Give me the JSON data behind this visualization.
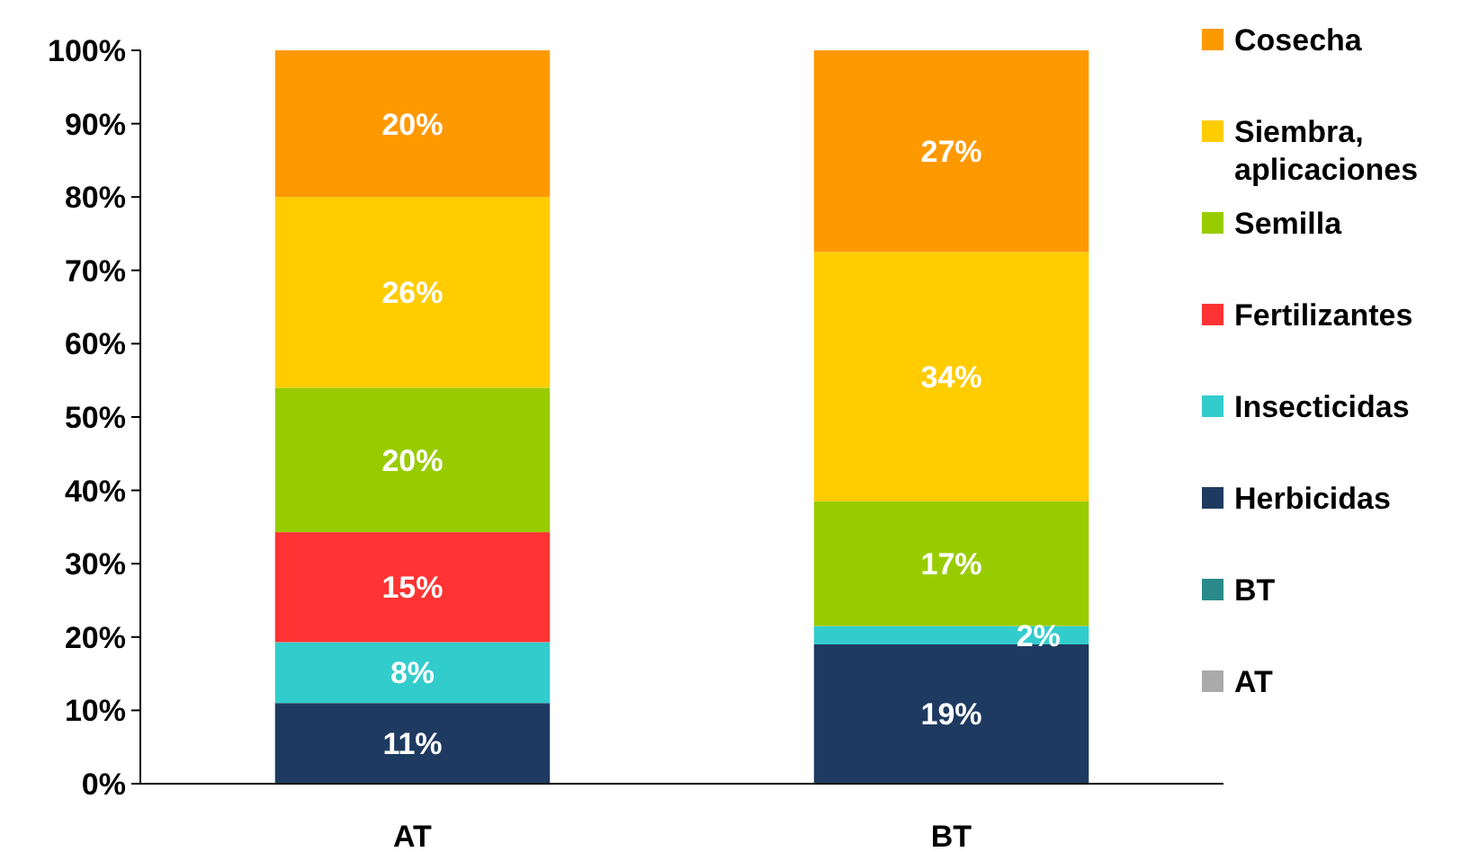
{
  "chart_data": {
    "type": "bar",
    "stacked": true,
    "categories": [
      "AT",
      "BT"
    ],
    "ylim": [
      0,
      100
    ],
    "yticks": [
      {
        "value": 0,
        "label": "0%"
      },
      {
        "value": 10,
        "label": "10%"
      },
      {
        "value": 20,
        "label": "20%"
      },
      {
        "value": 30,
        "label": "30%"
      },
      {
        "value": 40,
        "label": "40%"
      },
      {
        "value": 50,
        "label": "50%"
      },
      {
        "value": 60,
        "label": "60%"
      },
      {
        "value": 70,
        "label": "70%"
      },
      {
        "value": 80,
        "label": "80%"
      },
      {
        "value": 90,
        "label": "90%"
      },
      {
        "value": 100,
        "label": "100%"
      }
    ],
    "legend": "right",
    "grid": false,
    "series": [
      {
        "name": "Herbicidas",
        "color": "#1f3a60",
        "values": [
          11,
          19
        ],
        "value_labels": [
          "11%",
          "19%"
        ]
      },
      {
        "name": "Insecticidas",
        "color": "#33cccc",
        "values": [
          8.3,
          2.5
        ],
        "value_labels": [
          "8%",
          "2%"
        ]
      },
      {
        "name": "Fertilizantes",
        "color": "#ff3333",
        "values": [
          15,
          null
        ],
        "value_labels": [
          "15%",
          null
        ]
      },
      {
        "name": "Semilla",
        "color": "#99cc00",
        "values": [
          19.7,
          17
        ],
        "value_labels": [
          "20%",
          "17%"
        ]
      },
      {
        "name": "Siembra, aplicaciones",
        "color": "#ffcc00",
        "values": [
          26,
          34
        ],
        "value_labels": [
          "26%",
          "34%"
        ]
      },
      {
        "name": "Cosecha",
        "color": "#ff9900",
        "values": [
          20,
          27.5
        ],
        "value_labels": [
          "20%",
          "27%"
        ]
      },
      {
        "name": "BT",
        "color": "#2a8a8a",
        "values": [
          null,
          null
        ]
      },
      {
        "name": "AT",
        "color": "#aaaaaa",
        "values": [
          null,
          null
        ]
      }
    ]
  }
}
